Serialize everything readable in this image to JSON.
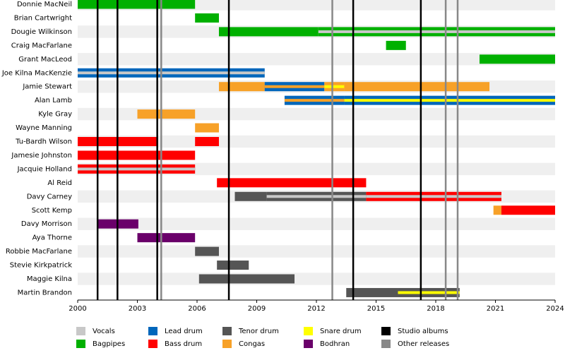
{
  "chart_data": {
    "type": "timeline",
    "xlim": [
      2000,
      2024
    ],
    "xticks": [
      2000,
      2003,
      2006,
      2009,
      2012,
      2015,
      2018,
      2021,
      2024
    ],
    "roles": [
      {
        "name": "Vocals",
        "color": "#c8c8c8"
      },
      {
        "name": "Bagpipes",
        "color": "#00b000"
      },
      {
        "name": "Lead drum",
        "color": "#0066bb"
      },
      {
        "name": "Bass drum",
        "color": "#ff0000"
      },
      {
        "name": "Tenor drum",
        "color": "#555555"
      },
      {
        "name": "Congas",
        "color": "#f7a128"
      },
      {
        "name": "Snare drum",
        "color": "#ffff00"
      },
      {
        "name": "Bodhran",
        "color": "#6a006a"
      }
    ],
    "events": [
      {
        "name": "Studio albums",
        "color": "#000000",
        "x": [
          2001.0,
          2002.0,
          2004.0,
          2007.6,
          2013.85,
          2017.25
        ]
      },
      {
        "name": "Other releases",
        "color": "#888888",
        "x": [
          2004.2,
          2012.8,
          2018.5,
          2019.1
        ]
      }
    ],
    "members": [
      {
        "name": "Donnie MacNeil",
        "bars": [
          {
            "start": 2000,
            "end": 2005.9,
            "color": "#00b000"
          }
        ]
      },
      {
        "name": "Brian Cartwright",
        "bars": [
          {
            "start": 2005.9,
            "end": 2007.1,
            "color": "#00b000"
          }
        ]
      },
      {
        "name": "Dougie Wilkinson",
        "bars": [
          {
            "start": 2007.1,
            "end": 2012.1,
            "color": "#00b000"
          },
          {
            "start": 2012.1,
            "end": 2024,
            "color": "#00b000",
            "stripe_color": "#c8c8c8"
          }
        ]
      },
      {
        "name": "Craig MacFarlane",
        "bars": [
          {
            "start": 2015.5,
            "end": 2016.5,
            "color": "#00b000"
          }
        ]
      },
      {
        "name": "Grant MacLeod",
        "bars": [
          {
            "start": 2020.2,
            "end": 2024,
            "color": "#00b000"
          }
        ]
      },
      {
        "name": "Joe Kilna MacKenzie",
        "bars": [
          {
            "start": 2000,
            "end": 2009.4,
            "color": "#0066bb",
            "stripe_color": "#c8c8c8"
          }
        ]
      },
      {
        "name": "Jamie Stewart",
        "bars": [
          {
            "start": 2007.1,
            "end": 2009.4,
            "color": "#f7a128"
          },
          {
            "start": 2009.4,
            "end": 2012.4,
            "color": "#0066bb",
            "stripe_color": "#f7a128"
          },
          {
            "start": 2012.4,
            "end": 2013.4,
            "color": "#f7a128",
            "stripe_color": "#ffff00"
          },
          {
            "start": 2013.4,
            "end": 2020.7,
            "color": "#f7a128"
          }
        ]
      },
      {
        "name": "Alan Lamb",
        "bars": [
          {
            "start": 2010.4,
            "end": 2013.4,
            "color": "#0066bb",
            "stripe_color": "#f7a128"
          },
          {
            "start": 2013.4,
            "end": 2024,
            "color": "#0066bb",
            "stripe_color": "#ffff00"
          }
        ]
      },
      {
        "name": "Kyle Gray",
        "bars": [
          {
            "start": 2003.0,
            "end": 2005.9,
            "color": "#f7a128"
          }
        ]
      },
      {
        "name": "Wayne Manning",
        "bars": [
          {
            "start": 2005.9,
            "end": 2007.1,
            "color": "#f7a128"
          }
        ]
      },
      {
        "name": "Tu-Bardh Wilson",
        "bars": [
          {
            "start": 2000,
            "end": 2004.0,
            "color": "#ff0000"
          },
          {
            "start": 2005.9,
            "end": 2007.1,
            "color": "#ff0000"
          }
        ]
      },
      {
        "name": "Jamesie Johnston",
        "bars": [
          {
            "start": 2000,
            "end": 2005.9,
            "color": "#ff0000"
          }
        ]
      },
      {
        "name": "Jacquie Holland",
        "bars": [
          {
            "start": 2000,
            "end": 2005.9,
            "color": "#ff0000",
            "stripe_color": "#c8c8c8"
          }
        ]
      },
      {
        "name": "Al Reid",
        "bars": [
          {
            "start": 2007.0,
            "end": 2014.5,
            "color": "#ff0000"
          }
        ]
      },
      {
        "name": "Davy Carney",
        "bars": [
          {
            "start": 2007.9,
            "end": 2009.5,
            "color": "#555555"
          },
          {
            "start": 2009.5,
            "end": 2014.5,
            "color": "#555555",
            "stripe_color": "#c8c8c8"
          },
          {
            "start": 2014.5,
            "end": 2021.3,
            "color": "#ff0000",
            "stripe_color": "#c8c8c8"
          }
        ]
      },
      {
        "name": "Scott Kemp",
        "bars": [
          {
            "start": 2020.9,
            "end": 2021.3,
            "color": "#f7a128"
          },
          {
            "start": 2021.3,
            "end": 2024,
            "color": "#ff0000"
          }
        ]
      },
      {
        "name": "Davy Morrison",
        "bars": [
          {
            "start": 2001.0,
            "end": 2003.05,
            "color": "#6a006a"
          }
        ]
      },
      {
        "name": "Aya Thorne",
        "bars": [
          {
            "start": 2003.0,
            "end": 2005.9,
            "color": "#6a006a"
          }
        ]
      },
      {
        "name": "Robbie MacFarlane",
        "bars": [
          {
            "start": 2005.9,
            "end": 2007.1,
            "color": "#555555"
          }
        ]
      },
      {
        "name": "Stevie Kirkpatrick",
        "bars": [
          {
            "start": 2007.0,
            "end": 2008.6,
            "color": "#555555"
          }
        ]
      },
      {
        "name": "Maggie Kilna",
        "bars": [
          {
            "start": 2006.1,
            "end": 2010.9,
            "color": "#555555"
          }
        ]
      },
      {
        "name": "Martin Brandon",
        "bars": [
          {
            "start": 2013.5,
            "end": 2016.1,
            "color": "#555555"
          },
          {
            "start": 2016.1,
            "end": 2019.2,
            "color": "#555555",
            "stripe_color": "#ffff00"
          }
        ]
      }
    ]
  }
}
